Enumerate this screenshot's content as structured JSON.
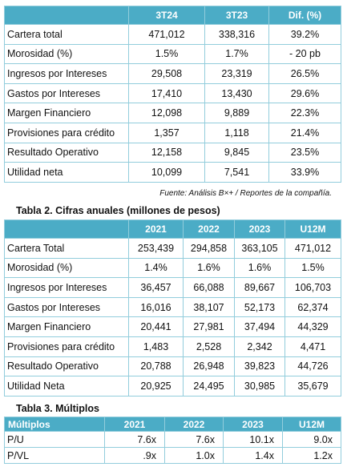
{
  "table_1": {
    "headers": [
      "3T24",
      "3T23",
      "Dif. (%)"
    ],
    "rows": [
      [
        "Cartera  total",
        "471,012",
        "338,316",
        "39.2%"
      ],
      [
        "Morosidad  (%)",
        "1.5%",
        "1.7%",
        "- 20 pb"
      ],
      [
        "Ingresos por Intereses",
        "29,508",
        "23,319",
        "26.5%"
      ],
      [
        "Gastos por Intereses",
        "17,410",
        "13,430",
        "29.6%"
      ],
      [
        "Margen Financiero",
        "12,098",
        "9,889",
        "22.3%"
      ],
      [
        "Provisiones para crédito",
        "1,357",
        "1,118",
        "21.4%"
      ],
      [
        "Resultado Operativo",
        "12,158",
        "9,845",
        "23.5%"
      ],
      [
        "Utilidad neta",
        "10,099",
        "7,541",
        "33.9%"
      ]
    ]
  },
  "source": "Fuente: Análisis B×+ / Reportes de la compañía.",
  "table_2": {
    "title": "Tabla 2. Cifras anuales (millones de pesos)",
    "headers": [
      "2021",
      "2022",
      "2023",
      "U12M"
    ],
    "rows": [
      [
        "Cartera Total",
        "253,439",
        "294,858",
        "363,105",
        "471,012"
      ],
      [
        "Morosidad (%)",
        "1.4%",
        "1.6%",
        "1.6%",
        "1.5%"
      ],
      [
        "Ingresos por Intereses",
        "36,457",
        "66,088",
        "89,667",
        "106,703"
      ],
      [
        "Gastos por Intereses",
        "16,016",
        "38,107",
        "52,173",
        "62,374"
      ],
      [
        "Margen Financiero",
        "20,441",
        "27,981",
        "37,494",
        "44,329"
      ],
      [
        "Provisiones para crédito",
        "1,483",
        "2,528",
        "2,342",
        "4,471"
      ],
      [
        "Resultado Operativo",
        "20,788",
        "26,948",
        "39,823",
        "44,726"
      ],
      [
        "Utilidad Neta",
        "20,925",
        "24,495",
        "30,985",
        "35,679"
      ]
    ]
  },
  "table_3": {
    "title": "Tabla 3. Múltiplos",
    "headers": [
      "Múltiplos",
      "2021",
      "2022",
      "2023",
      "U12M"
    ],
    "rows": [
      [
        "P/U",
        "7.6x",
        "7.6x",
        "10.1x",
        "9.0x"
      ],
      [
        "P/VL",
        ".9x",
        "1.0x",
        "1.4x",
        "1.2x"
      ]
    ]
  }
}
